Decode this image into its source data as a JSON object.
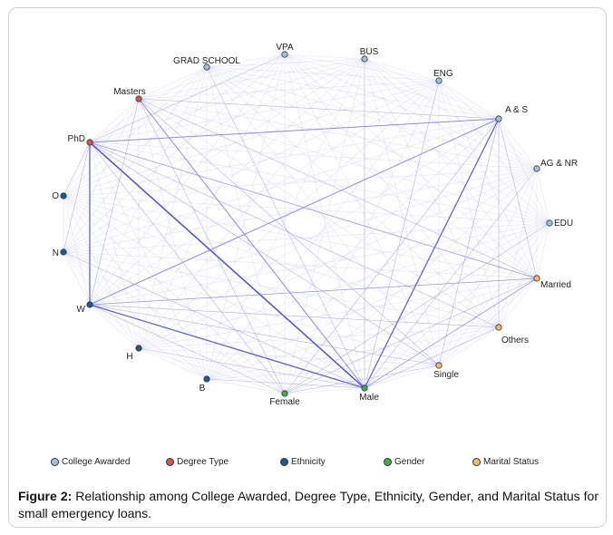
{
  "figure": {
    "caption_label": "Figure 2:",
    "caption_text": " Relationship among College Awarded, Degree Type, Ethnicity, Gender, and Marital Status for small emergency loans."
  },
  "groups": {
    "college": {
      "label": "College Awarded",
      "color": "#9dc3da"
    },
    "degree": {
      "label": "Degree Type",
      "color": "#d9534f"
    },
    "ethnicity": {
      "label": "Ethnicity",
      "color": "#1a5a96"
    },
    "gender": {
      "label": "Gender",
      "color": "#3cb043"
    },
    "marital": {
      "label": "Marital Status",
      "color": "#f5b95e"
    }
  },
  "legend": [
    "college",
    "degree",
    "ethnicity",
    "gender",
    "marital"
  ],
  "nodes": [
    {
      "id": "GRAD SCHOOL",
      "label": "GRAD SCHOOL",
      "group": "college"
    },
    {
      "id": "VPA",
      "label": "VPA",
      "group": "college"
    },
    {
      "id": "BUS",
      "label": "BUS",
      "group": "college"
    },
    {
      "id": "ENG",
      "label": "ENG",
      "group": "college"
    },
    {
      "id": "A & S",
      "label": "A & S",
      "group": "college"
    },
    {
      "id": "AG & NR",
      "label": "AG & NR",
      "group": "college"
    },
    {
      "id": "EDU",
      "label": "EDU",
      "group": "college"
    },
    {
      "id": "Masters",
      "label": "Masters",
      "group": "degree"
    },
    {
      "id": "PhD",
      "label": "PhD",
      "group": "degree"
    },
    {
      "id": "O",
      "label": "O",
      "group": "ethnicity"
    },
    {
      "id": "N",
      "label": "N",
      "group": "ethnicity"
    },
    {
      "id": "W",
      "label": "W",
      "group": "ethnicity"
    },
    {
      "id": "H",
      "label": "H",
      "group": "ethnicity"
    },
    {
      "id": "B",
      "label": "B",
      "group": "ethnicity"
    },
    {
      "id": "Female",
      "label": "Female",
      "group": "gender"
    },
    {
      "id": "Male",
      "label": "Male",
      "group": "gender"
    },
    {
      "id": "Married",
      "label": "Married",
      "group": "marital"
    },
    {
      "id": "Others",
      "label": "Others",
      "group": "marital"
    },
    {
      "id": "Single",
      "label": "Single",
      "group": "marital"
    }
  ],
  "edges": [
    {
      "source": "PhD",
      "target": "Male",
      "weight": 3
    },
    {
      "source": "A & S",
      "target": "Male",
      "weight": 2.5
    },
    {
      "source": "W",
      "target": "Male",
      "weight": 2.5
    },
    {
      "source": "PhD",
      "target": "W",
      "weight": 2.5
    },
    {
      "source": "Masters",
      "target": "Male",
      "weight": 2
    },
    {
      "source": "PhD",
      "target": "A & S",
      "weight": 2
    },
    {
      "source": "W",
      "target": "A & S",
      "weight": 2
    },
    {
      "source": "PhD",
      "target": "Married",
      "weight": 1.5
    },
    {
      "source": "W",
      "target": "Married",
      "weight": 1.5
    },
    {
      "source": "Male",
      "target": "Married",
      "weight": 1.5
    },
    {
      "source": "PhD",
      "target": "Single",
      "weight": 1.2
    },
    {
      "source": "PhD",
      "target": "Others",
      "weight": 1.2
    },
    {
      "source": "W",
      "target": "Single",
      "weight": 1.2
    },
    {
      "source": "W",
      "target": "Others",
      "weight": 1.2
    },
    {
      "source": "Masters",
      "target": "W",
      "weight": 1.2
    },
    {
      "source": "Masters",
      "target": "Single",
      "weight": 1.2
    },
    {
      "source": "A & S",
      "target": "Single",
      "weight": 1.2
    },
    {
      "source": "Male",
      "target": "Others",
      "weight": 1.2
    },
    {
      "source": "PhD",
      "target": "Female",
      "weight": 1.0
    },
    {
      "source": "A & S",
      "target": "Female",
      "weight": 1.0
    },
    {
      "source": "A & S",
      "target": "Married",
      "weight": 1.0
    },
    {
      "source": "A & S",
      "target": "Others",
      "weight": 1.0
    },
    {
      "source": "Masters",
      "target": "A & S",
      "weight": 1.0
    },
    {
      "source": "Masters",
      "target": "Married",
      "weight": 1.0
    },
    {
      "source": "Masters",
      "target": "Female",
      "weight": 1.0
    },
    {
      "source": "W",
      "target": "Female",
      "weight": 1.0
    },
    {
      "source": "BUS",
      "target": "Male",
      "weight": 1.0
    },
    {
      "source": "ENG",
      "target": "Male",
      "weight": 1.0
    },
    {
      "source": "N",
      "target": "PhD",
      "weight": 1.0
    },
    {
      "source": "N",
      "target": "Male",
      "weight": 1.0
    },
    {
      "source": "O",
      "target": "PhD",
      "weight": 0.8
    },
    {
      "source": "GRAD SCHOOL",
      "target": "Male",
      "weight": 0.8
    },
    {
      "source": "VPA",
      "target": "PhD",
      "weight": 0.8
    },
    {
      "source": "EDU",
      "target": "Female",
      "weight": 0.8
    },
    {
      "source": "AG & NR",
      "target": "Male",
      "weight": 0.8
    },
    {
      "source": "H",
      "target": "Male",
      "weight": 0.8
    },
    {
      "source": "B",
      "target": "Male",
      "weight": 0.8
    },
    {
      "source": "Female",
      "target": "Single",
      "weight": 0.8
    },
    {
      "source": "Female",
      "target": "Married",
      "weight": 0.8
    }
  ]
}
